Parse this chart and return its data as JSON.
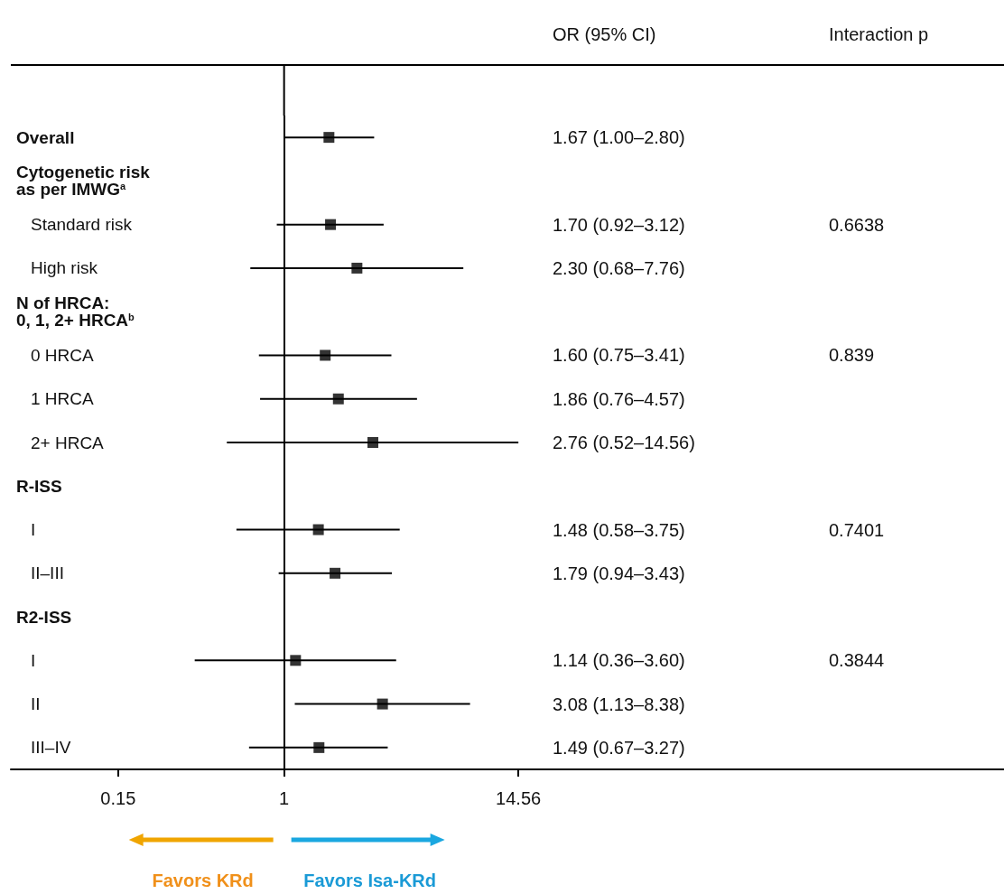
{
  "chart_data": {
    "type": "scatter",
    "orientation": "horizontal",
    "marker": "square",
    "color": "#000000",
    "categories": [
      "Overall",
      "Cytogenetic risk\nas per IMWG$^{a}$",
      "Standard risk",
      "High risk",
      "N of HRCA:\n0, 1, 2+ HRCA$^{b}$",
      "0 HRCA",
      "1 HRCA",
      "2+ HRCA",
      "R-ISS",
      "I",
      "II–III",
      "R2-ISS",
      "I",
      "II",
      "III–IV"
    ],
    "values": [
      1.67,
      null,
      1.7,
      2.3,
      null,
      1.6,
      1.86,
      2.76,
      null,
      1.48,
      1.79,
      null,
      1.14,
      3.08,
      1.49
    ],
    "errors": [
      [
        1.0,
        2.8
      ],
      null,
      [
        0.92,
        3.12
      ],
      [
        0.68,
        7.76
      ],
      null,
      [
        0.75,
        3.41
      ],
      [
        0.76,
        4.57
      ],
      [
        0.52,
        14.56
      ],
      null,
      [
        0.58,
        3.75
      ],
      [
        0.94,
        3.43
      ],
      null,
      [
        0.36,
        3.6
      ],
      [
        1.13,
        8.38
      ],
      [
        0.67,
        3.27
      ]
    ],
    "log": "x",
    "xlim": [
      0.044,
      3750
    ],
    "xticks": [
      0.15,
      1,
      14.56
    ],
    "grid": false,
    "legend": false,
    "ref_lines": [
      {
        "axis": "x",
        "value": 1,
        "color": "#000000"
      }
    ],
    "annotations": [
      "OR (95% CI)",
      "Interaction p",
      "Favors KRd",
      "Favors Isa-KRd",
      "1.67 (1.00–2.80)",
      "1.70 (0.92–3.12)",
      "2.30 (0.68–7.76)",
      "1.60 (0.75–3.41)",
      "1.86 (0.76–4.57)",
      "2.76 (0.52–14.56)",
      "1.48 (0.58–3.75)",
      "1.79 (0.94–3.43)",
      "1.14 (0.36–3.60)",
      "3.08 (1.13–8.38)",
      "1.49 (0.67–3.27)",
      "0.6638",
      "0.839",
      "0.7401",
      "0.3844"
    ]
  }
}
